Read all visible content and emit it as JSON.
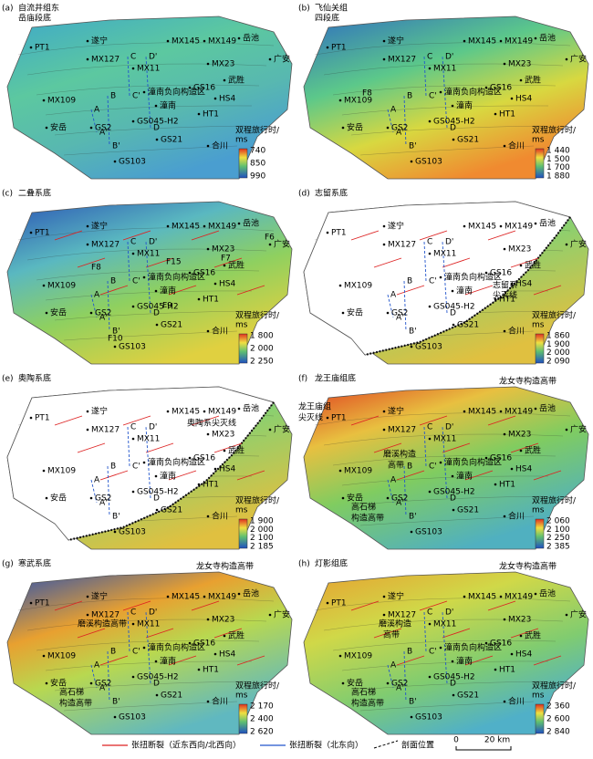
{
  "places": [
    "PT1",
    "遂宁",
    "MX145",
    "MX149",
    "岳池",
    "MX127",
    "MX11",
    "MX23",
    "武胜",
    "广安",
    "MX109",
    "GS16",
    "潼南负向构造区",
    "潼南",
    "HS4",
    "GS045-H2",
    "安岳",
    "GS2",
    "HT1",
    "GS21",
    "合川",
    "GS103"
  ],
  "profiles": [
    "A",
    "A'",
    "B",
    "B'",
    "C",
    "C'",
    "D",
    "D'"
  ],
  "colorbar_title": [
    "双程旅行时/",
    "ms"
  ],
  "panels": [
    {
      "label": "(a)",
      "title": [
        "自流井组东",
        "岳庙段底"
      ],
      "colorbar": [
        "740",
        "850",
        "990"
      ],
      "notes": []
    },
    {
      "label": "(b)",
      "title": [
        "飞仙关组",
        "四段底"
      ],
      "colorbar": [
        "1 440",
        "1 500",
        "1 700",
        "1 880"
      ],
      "notes": [
        "F8"
      ]
    },
    {
      "label": "(c)",
      "title": [
        "二叠系底"
      ],
      "colorbar": [
        "1 800",
        "2 000",
        "2 250"
      ],
      "notes": [
        "F6",
        "F7",
        "F8",
        "F9",
        "F10",
        "F15"
      ]
    },
    {
      "label": "(d)",
      "title": [
        "志留系底"
      ],
      "colorbar": [
        "1 860",
        "1 900",
        "2 000",
        "2 090"
      ],
      "notes": [
        "志留系",
        "尖灭线"
      ]
    },
    {
      "label": "(e)",
      "title": [
        "奥陶系底"
      ],
      "colorbar": [
        "1 900",
        "2 000",
        "2 100",
        "2 185"
      ],
      "notes": [
        "奥陶系尖灭线"
      ]
    },
    {
      "label": "(f)",
      "title": [
        "龙王庙组底"
      ],
      "colorbar": [
        "2 060",
        "2 100",
        "2 250",
        "2 385"
      ],
      "notes": [
        "龙女寺构造高带",
        "龙王庙组",
        "尖灭线",
        "磨溪构造",
        "高带",
        "高石梯",
        "构造高带"
      ]
    },
    {
      "label": "(g)",
      "title": [
        "寒武系底"
      ],
      "colorbar": [
        "2 170",
        "2 400",
        "2 620"
      ],
      "notes": [
        "龙女寺构造高带",
        "磨溪构造高带",
        "高石梯",
        "构造高带"
      ]
    },
    {
      "label": "(h)",
      "title": [
        "灯影组底"
      ],
      "colorbar": [
        "2 360",
        "2 600",
        "2 840"
      ],
      "notes": [
        "龙女寺构造高带",
        "磨溪构造",
        "高带",
        "高石梯",
        "构造高带"
      ]
    }
  ],
  "legend": {
    "fault_ew": "张扭断裂（近东西向/北西向）",
    "fault_ne": "张扭断裂（北东向）",
    "profile": "剖面位置",
    "scale_start": "0",
    "scale_end": "20 km"
  }
}
